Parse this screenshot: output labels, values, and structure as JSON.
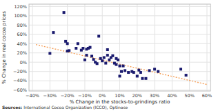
{
  "chart_data": {
    "type": "scatter",
    "xlabel": "% Change in the stocks-to-grindings ratio",
    "ylabel": "% Change in real cocoa prices",
    "annotations": [
      "Sources:",
      " International Cocoa Organization (ICCO), Optinose"
    ],
    "xlim": [
      -0.42,
      0.62
    ],
    "ylim": [
      -0.62,
      1.25
    ],
    "xticks": [
      {
        "value": -0.4,
        "label": "−40%"
      },
      {
        "value": -0.3,
        "label": "−30%"
      },
      {
        "value": -0.2,
        "label": "−20%"
      },
      {
        "value": -0.1,
        "label": "−10%"
      },
      {
        "value": 0.0,
        "label": "0%"
      },
      {
        "value": 0.1,
        "label": "10%"
      },
      {
        "value": 0.2,
        "label": "20%"
      },
      {
        "value": 0.3,
        "label": "30%"
      },
      {
        "value": 0.4,
        "label": "40%"
      },
      {
        "value": 0.5,
        "label": "50%"
      },
      {
        "value": 0.6,
        "label": "60%"
      }
    ],
    "yticks": [
      {
        "value": -0.6,
        "label": "−60%"
      },
      {
        "value": -0.4,
        "label": "−40%"
      },
      {
        "value": -0.2,
        "label": "−20%"
      },
      {
        "value": 0.0,
        "label": "0%"
      },
      {
        "value": 0.2,
        "label": "20%"
      },
      {
        "value": 0.4,
        "label": "40%"
      },
      {
        "value": 0.6,
        "label": "60%"
      },
      {
        "value": 0.8,
        "label": "80%"
      },
      {
        "value": 1.0,
        "label": "100%"
      },
      {
        "value": 1.2,
        "label": "120%"
      }
    ],
    "grid": true,
    "series": [
      {
        "type": "scatter",
        "color": "#1a1a6e",
        "marker": "square",
        "x": [
          -0.3,
          -0.28,
          -0.22,
          -0.21,
          -0.2,
          -0.2,
          -0.19,
          -0.15,
          -0.14,
          -0.12,
          -0.11,
          -0.1,
          -0.09,
          -0.09,
          -0.08,
          -0.07,
          -0.06,
          -0.05,
          -0.04,
          -0.03,
          -0.02,
          -0.01,
          0.0,
          0.01,
          0.02,
          0.03,
          0.03,
          0.04,
          0.05,
          0.06,
          0.07,
          0.08,
          0.08,
          0.09,
          0.1,
          0.1,
          0.11,
          0.12,
          0.13,
          0.15,
          0.17,
          0.18,
          0.2,
          0.21,
          0.22,
          0.23,
          0.25,
          0.27,
          0.3,
          0.32,
          0.45,
          0.48
        ],
        "values": [
          0.19,
          0.64,
          1.07,
          0.45,
          0.4,
          0.24,
          0.25,
          0.3,
          0.4,
          0.26,
          0.3,
          0.05,
          0.28,
          0.15,
          0.3,
          0.32,
          0.13,
          0.06,
          0.0,
          -0.03,
          0.56,
          0.08,
          0.03,
          0.1,
          -0.02,
          0.15,
          0.27,
          0.05,
          0.1,
          0.14,
          -0.02,
          -0.05,
          0.08,
          0.05,
          -0.08,
          -0.3,
          -0.2,
          -0.08,
          -0.18,
          -0.22,
          -0.2,
          -0.22,
          -0.3,
          -0.17,
          -0.22,
          -0.35,
          -0.35,
          -0.18,
          -0.15,
          -0.2,
          -0.15,
          -0.28
        ]
      },
      {
        "type": "line",
        "color": "#f5a05a",
        "line_style": "dotted",
        "x": [
          -0.38,
          0.6
        ],
        "values": [
          0.38,
          -0.48
        ]
      }
    ]
  }
}
